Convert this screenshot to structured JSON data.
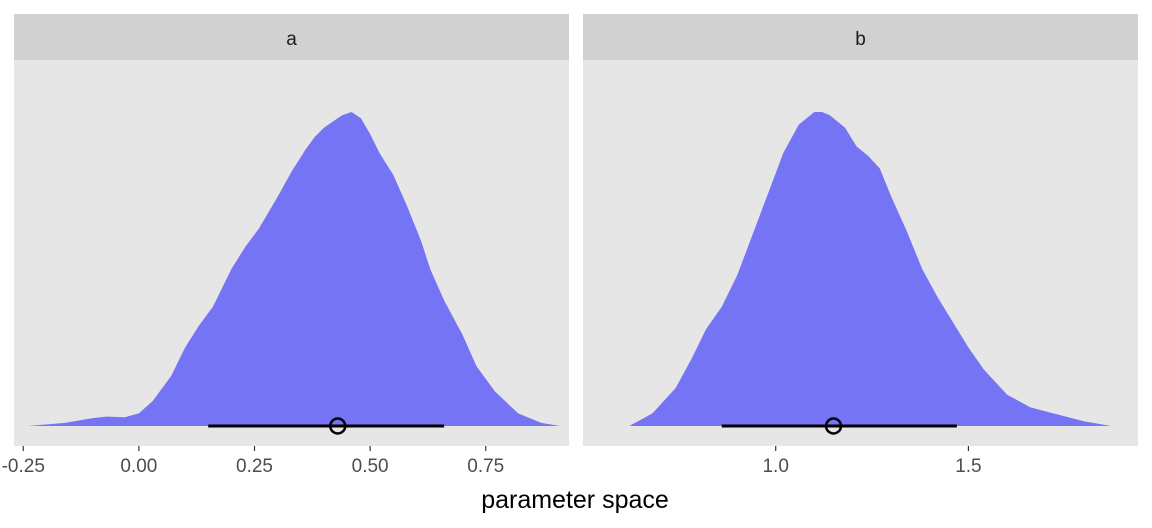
{
  "chart_data": {
    "type": "area",
    "xlabel": "parameter space",
    "ylabel": "",
    "grid": false,
    "colors": {
      "panel_background": "#e6e6e6",
      "strip_background": "#d1d1d1",
      "density_fill": "#7474f4",
      "interval_line": "#000000"
    },
    "facets": [
      {
        "strip": "a",
        "xlim": [
          -0.27,
          0.93
        ],
        "ticks": [
          -0.25,
          0.0,
          0.25,
          0.5,
          0.75
        ],
        "tick_labels": [
          "-0.25",
          "0.00",
          "0.25",
          "0.50",
          "0.75"
        ],
        "density_x": [
          -0.24,
          -0.16,
          -0.1,
          -0.07,
          -0.03,
          0.0,
          0.03,
          0.07,
          0.1,
          0.13,
          0.16,
          0.2,
          0.23,
          0.26,
          0.28,
          0.3,
          0.33,
          0.36,
          0.38,
          0.4,
          0.42,
          0.44,
          0.46,
          0.48,
          0.5,
          0.52,
          0.55,
          0.58,
          0.61,
          0.63,
          0.66,
          0.7,
          0.73,
          0.77,
          0.82,
          0.87,
          0.91
        ],
        "density_y": [
          0.0,
          0.01,
          0.025,
          0.03,
          0.028,
          0.04,
          0.08,
          0.16,
          0.25,
          0.32,
          0.38,
          0.5,
          0.57,
          0.63,
          0.68,
          0.73,
          0.81,
          0.88,
          0.92,
          0.95,
          0.97,
          0.99,
          1.0,
          0.98,
          0.93,
          0.87,
          0.8,
          0.7,
          0.59,
          0.5,
          0.4,
          0.29,
          0.19,
          0.11,
          0.04,
          0.01,
          0.0
        ],
        "point": 0.43,
        "interval": [
          0.15,
          0.66
        ]
      },
      {
        "strip": "b",
        "xlim": [
          0.5,
          1.94
        ],
        "ticks": [
          1.0,
          1.5
        ],
        "tick_labels": [
          "1.0",
          "1.5"
        ],
        "density_x": [
          0.62,
          0.68,
          0.74,
          0.78,
          0.82,
          0.86,
          0.9,
          0.94,
          0.98,
          1.02,
          1.06,
          1.1,
          1.12,
          1.14,
          1.18,
          1.21,
          1.24,
          1.27,
          1.3,
          1.34,
          1.38,
          1.42,
          1.46,
          1.5,
          1.54,
          1.6,
          1.66,
          1.72,
          1.8,
          1.87
        ],
        "density_y": [
          0.0,
          0.04,
          0.12,
          0.21,
          0.31,
          0.38,
          0.48,
          0.61,
          0.74,
          0.87,
          0.96,
          1.0,
          1.0,
          0.99,
          0.95,
          0.89,
          0.86,
          0.82,
          0.73,
          0.62,
          0.5,
          0.41,
          0.33,
          0.25,
          0.18,
          0.1,
          0.06,
          0.04,
          0.015,
          0.0
        ],
        "point": 1.15,
        "interval": [
          0.86,
          1.47
        ]
      }
    ]
  }
}
